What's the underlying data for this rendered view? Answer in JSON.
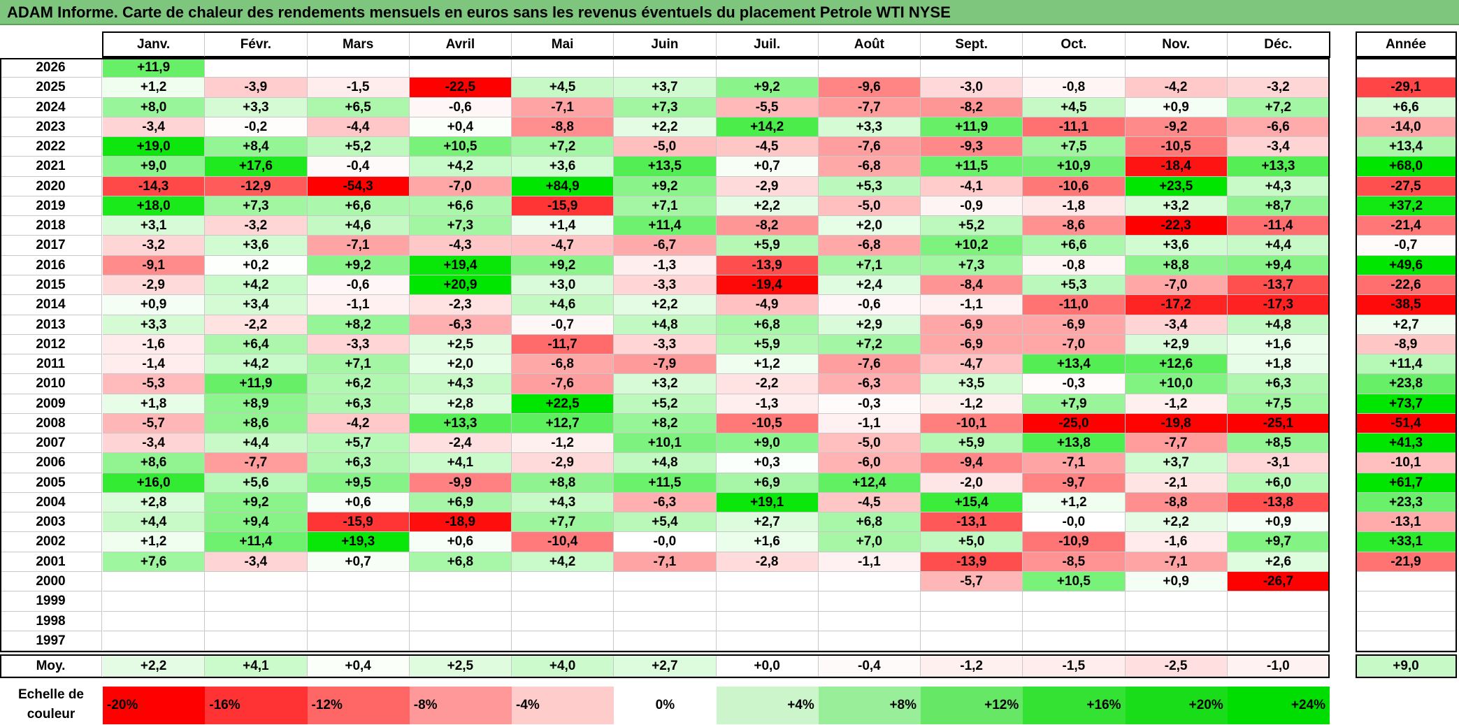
{
  "title": "ADAM Informe. Carte de chaleur des rendements mensuels en euros sans les revenus éventuels du placement Petrole WTI NYSE",
  "colors": {
    "red": "#ff0000",
    "white": "#ffffff",
    "green": "#00e600"
  },
  "chart_data": {
    "type": "heatmap",
    "title": "ADAM Informe. Carte de chaleur des rendements mensuels en euros sans les revenus éventuels du placement Petrole WTI NYSE",
    "months": [
      "Janv.",
      "Févr.",
      "Mars",
      "Avril",
      "Mai",
      "Juin",
      "Juil.",
      "Août",
      "Sept.",
      "Oct.",
      "Nov.",
      "Déc."
    ],
    "year_header": "Année",
    "years": [
      "2026",
      "2025",
      "2024",
      "2023",
      "2022",
      "2021",
      "2020",
      "2019",
      "2018",
      "2017",
      "2016",
      "2015",
      "2014",
      "2013",
      "2012",
      "2011",
      "2010",
      "2009",
      "2008",
      "2007",
      "2006",
      "2005",
      "2004",
      "2003",
      "2002",
      "2001",
      "2000",
      "1999",
      "1998",
      "1997"
    ],
    "values": [
      [
        "+11,9",
        "",
        "",
        "",
        "",
        "",
        "",
        "",
        "",
        "",
        "",
        ""
      ],
      [
        "+1,2",
        "-3,9",
        "-1,5",
        "-22,5",
        "+4,5",
        "+3,7",
        "+9,2",
        "-9,6",
        "-3,0",
        "-0,8",
        "-4,2",
        "-3,2"
      ],
      [
        "+8,0",
        "+3,3",
        "+6,5",
        "-0,6",
        "-7,1",
        "+7,3",
        "-5,5",
        "-7,7",
        "-8,2",
        "+4,5",
        "+0,9",
        "+7,2"
      ],
      [
        "-3,4",
        "-0,2",
        "-4,4",
        "+0,4",
        "-8,8",
        "+2,2",
        "+14,2",
        "+3,3",
        "+11,9",
        "-11,1",
        "-9,2",
        "-6,6"
      ],
      [
        "+19,0",
        "+8,4",
        "+5,2",
        "+10,5",
        "+7,2",
        "-5,0",
        "-4,5",
        "-7,6",
        "-9,3",
        "+7,5",
        "-10,5",
        "-3,4"
      ],
      [
        "+9,0",
        "+17,6",
        "-0,4",
        "+4,2",
        "+3,6",
        "+13,5",
        "+0,7",
        "-6,8",
        "+11,5",
        "+10,9",
        "-18,4",
        "+13,3"
      ],
      [
        "-14,3",
        "-12,9",
        "-54,3",
        "-7,0",
        "+84,9",
        "+9,2",
        "-2,9",
        "+5,3",
        "-4,1",
        "-10,6",
        "+23,5",
        "+4,3"
      ],
      [
        "+18,0",
        "+7,3",
        "+6,6",
        "+6,6",
        "-15,9",
        "+7,1",
        "+2,2",
        "-5,0",
        "-0,9",
        "-1,8",
        "+3,2",
        "+8,7"
      ],
      [
        "+3,1",
        "-3,2",
        "+4,6",
        "+7,3",
        "+1,4",
        "+11,4",
        "-8,2",
        "+2,0",
        "+5,2",
        "-8,6",
        "-22,3",
        "-11,4"
      ],
      [
        "-3,2",
        "+3,6",
        "-7,1",
        "-4,3",
        "-4,7",
        "-6,7",
        "+5,9",
        "-6,8",
        "+10,2",
        "+6,6",
        "+3,6",
        "+4,4"
      ],
      [
        "-9,1",
        "+0,2",
        "+9,2",
        "+19,4",
        "+9,2",
        "-1,3",
        "-13,9",
        "+7,1",
        "+7,3",
        "-0,8",
        "+8,8",
        "+9,4"
      ],
      [
        "-2,9",
        "+4,2",
        "-0,6",
        "+20,9",
        "+3,0",
        "-3,3",
        "-19,4",
        "+2,4",
        "-8,4",
        "+5,3",
        "-7,0",
        "-13,7"
      ],
      [
        "+0,9",
        "+3,4",
        "-1,1",
        "-2,3",
        "+4,6",
        "+2,2",
        "-4,9",
        "-0,6",
        "-1,1",
        "-11,0",
        "-17,2",
        "-17,3"
      ],
      [
        "+3,3",
        "-2,2",
        "+8,2",
        "-6,3",
        "-0,7",
        "+4,8",
        "+6,8",
        "+2,9",
        "-6,9",
        "-6,9",
        "-3,4",
        "+4,8"
      ],
      [
        "-1,6",
        "+6,4",
        "-3,3",
        "+2,5",
        "-11,7",
        "-3,3",
        "+5,9",
        "+7,2",
        "-6,9",
        "-7,0",
        "+2,9",
        "+1,6"
      ],
      [
        "-1,4",
        "+4,2",
        "+7,1",
        "+2,0",
        "-6,8",
        "-7,9",
        "+1,2",
        "-7,6",
        "-4,7",
        "+13,4",
        "+12,6",
        "+1,8"
      ],
      [
        "-5,3",
        "+11,9",
        "+6,2",
        "+4,3",
        "-7,6",
        "+3,2",
        "-2,2",
        "-6,3",
        "+3,5",
        "-0,3",
        "+10,0",
        "+6,3"
      ],
      [
        "+1,8",
        "+8,9",
        "+6,3",
        "+2,8",
        "+22,5",
        "+5,2",
        "-1,3",
        "-0,3",
        "-1,2",
        "+7,9",
        "-1,2",
        "+7,5"
      ],
      [
        "-5,7",
        "+8,6",
        "-4,2",
        "+13,3",
        "+12,7",
        "+8,2",
        "-10,5",
        "-1,1",
        "-10,1",
        "-25,0",
        "-19,8",
        "-25,1"
      ],
      [
        "-3,4",
        "+4,4",
        "+5,7",
        "-2,4",
        "-1,2",
        "+10,1",
        "+9,0",
        "-5,0",
        "+5,9",
        "+13,8",
        "-7,7",
        "+8,5"
      ],
      [
        "+8,6",
        "-7,7",
        "+6,3",
        "+4,1",
        "-2,9",
        "+4,8",
        "+0,3",
        "-6,0",
        "-9,4",
        "-7,1",
        "+3,7",
        "-3,1"
      ],
      [
        "+16,0",
        "+5,6",
        "+9,5",
        "-9,9",
        "+8,8",
        "+11,5",
        "+6,9",
        "+12,4",
        "-2,0",
        "-9,7",
        "-2,1",
        "+6,0"
      ],
      [
        "+2,8",
        "+9,2",
        "+0,6",
        "+6,9",
        "+4,3",
        "-6,3",
        "+19,1",
        "-4,5",
        "+15,4",
        "+1,2",
        "-8,8",
        "-13,8"
      ],
      [
        "+4,4",
        "+9,4",
        "-15,9",
        "-18,9",
        "+7,7",
        "+5,4",
        "+2,7",
        "+6,8",
        "-13,1",
        "-0,0",
        "+2,2",
        "+0,9"
      ],
      [
        "+1,2",
        "+11,4",
        "+19,3",
        "+0,6",
        "-10,4",
        "-0,0",
        "+1,6",
        "+7,0",
        "+5,0",
        "-10,9",
        "-1,6",
        "+9,7"
      ],
      [
        "+7,6",
        "-3,4",
        "+0,7",
        "+6,8",
        "+4,2",
        "-7,1",
        "-2,8",
        "-1,1",
        "-13,9",
        "-8,5",
        "-7,1",
        "+2,6"
      ],
      [
        "",
        "",
        "",
        "",
        "",
        "",
        "",
        "",
        "-5,7",
        "+10,5",
        "+0,9",
        "-26,7"
      ],
      [
        "",
        "",
        "",
        "",
        "",
        "",
        "",
        "",
        "",
        "",
        "",
        ""
      ],
      [
        "",
        "",
        "",
        "",
        "",
        "",
        "",
        "",
        "",
        "",
        "",
        ""
      ],
      [
        "",
        "",
        "",
        "",
        "",
        "",
        "",
        "",
        "",
        "",
        "",
        ""
      ]
    ],
    "annual": [
      "",
      "-29,1",
      "+6,6",
      "-14,0",
      "+13,4",
      "+68,0",
      "-27,5",
      "+37,2",
      "-21,4",
      "-0,7",
      "+49,6",
      "-22,6",
      "-38,5",
      "+2,7",
      "-8,9",
      "+11,4",
      "+23,8",
      "+73,7",
      "-51,4",
      "+41,3",
      "-10,1",
      "+61,7",
      "+23,3",
      "-13,1",
      "+33,1",
      "-21,9",
      "",
      "",
      "",
      ""
    ],
    "average_label": "Moy.",
    "averages": [
      "+2,2",
      "+4,1",
      "+0,4",
      "+2,5",
      "+4,0",
      "+2,7",
      "+0,0",
      "-0,4",
      "-1,2",
      "-1,5",
      "-2,5",
      "-1,0"
    ],
    "average_annual": "+9,0",
    "legend": {
      "label_line1": "Echelle de",
      "label_line2": "couleur",
      "steps": [
        "-20%",
        "-16%",
        "-12%",
        "-8%",
        "-4%",
        "0%",
        "+4%",
        "+8%",
        "+12%",
        "+16%",
        "+20%",
        "+24%"
      ]
    }
  }
}
